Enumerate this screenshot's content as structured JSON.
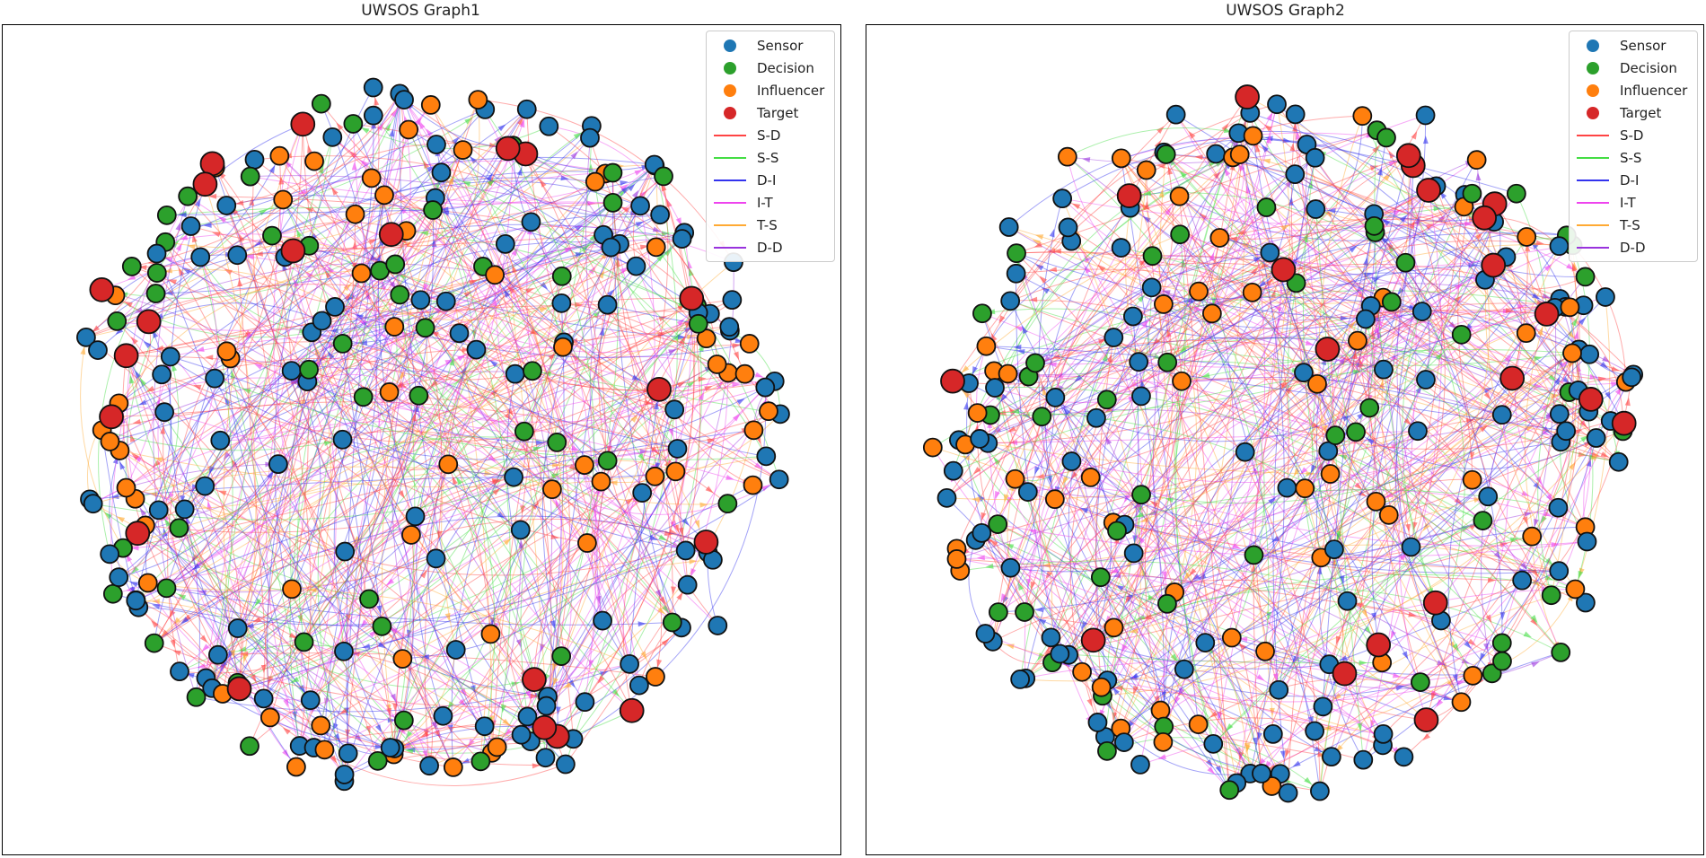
{
  "colors": {
    "sensor": "#1f77b4",
    "decision": "#2ca02c",
    "influencer": "#ff7f0e",
    "target": "#d62728",
    "edge_sd": "#ff4444",
    "edge_ss": "#44dd44",
    "edge_di": "#3333ee",
    "edge_it": "#ee44ee",
    "edge_ts": "#ffaa33",
    "edge_dd": "#9933dd"
  },
  "graphs": [
    {
      "title": "UWSOS Graph1",
      "legend": {
        "nodes": [
          "Sensor",
          "Decision",
          "Influencer",
          "Target"
        ],
        "edges": [
          "S-D",
          "S-S",
          "D-I",
          "I-T",
          "T-S",
          "D-D"
        ]
      },
      "node_counts": {
        "sensor": 120,
        "decision": 50,
        "influencer": 60,
        "target": 20
      }
    },
    {
      "title": "UWSOS Graph2",
      "legend": {
        "nodes": [
          "Sensor",
          "Decision",
          "Influencer",
          "Target"
        ],
        "edges": [
          "S-D",
          "S-S",
          "D-I",
          "I-T",
          "T-S",
          "D-D"
        ]
      },
      "node_counts": {
        "sensor": 120,
        "decision": 50,
        "influencer": 60,
        "target": 20
      }
    }
  ]
}
